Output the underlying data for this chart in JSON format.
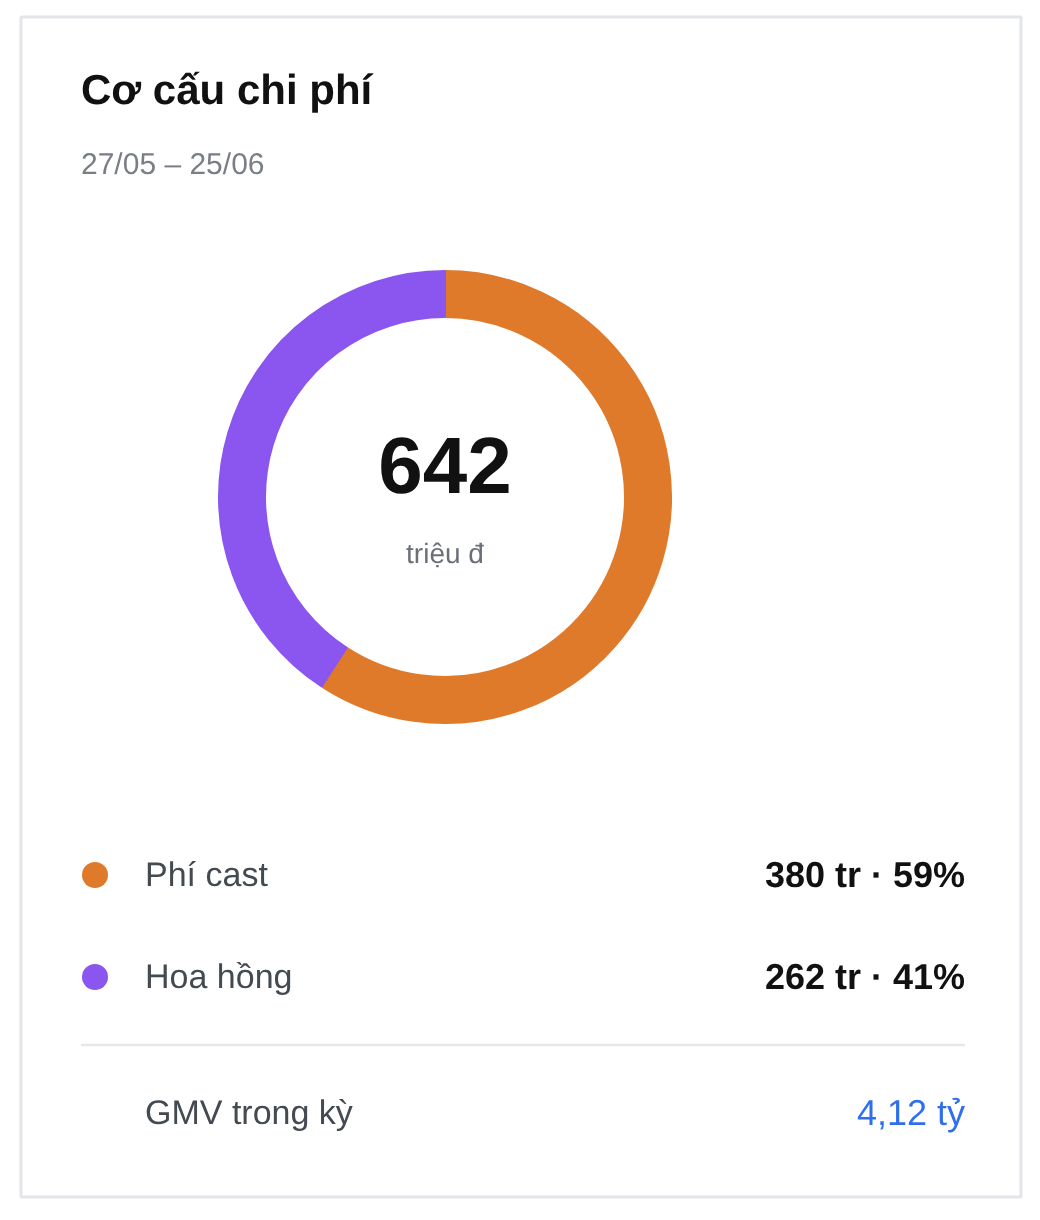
{
  "chart_data": {
    "type": "donut",
    "title": "Cơ cấu chi phí",
    "subtitle": "27/05 – 25/06",
    "categories": [
      "Phí cast",
      "Hoa hồng"
    ],
    "values": [
      380,
      262
    ],
    "colors": [
      "#e07a2b",
      "#8b55ef"
    ],
    "value_labels": [
      "380 tr · 59%",
      "262 tr · 41%"
    ],
    "legend": "bottom",
    "annotations": [
      "642",
      "triệu đ",
      "GMV trong kỳ",
      "4,12 tỷ"
    ]
  }
}
